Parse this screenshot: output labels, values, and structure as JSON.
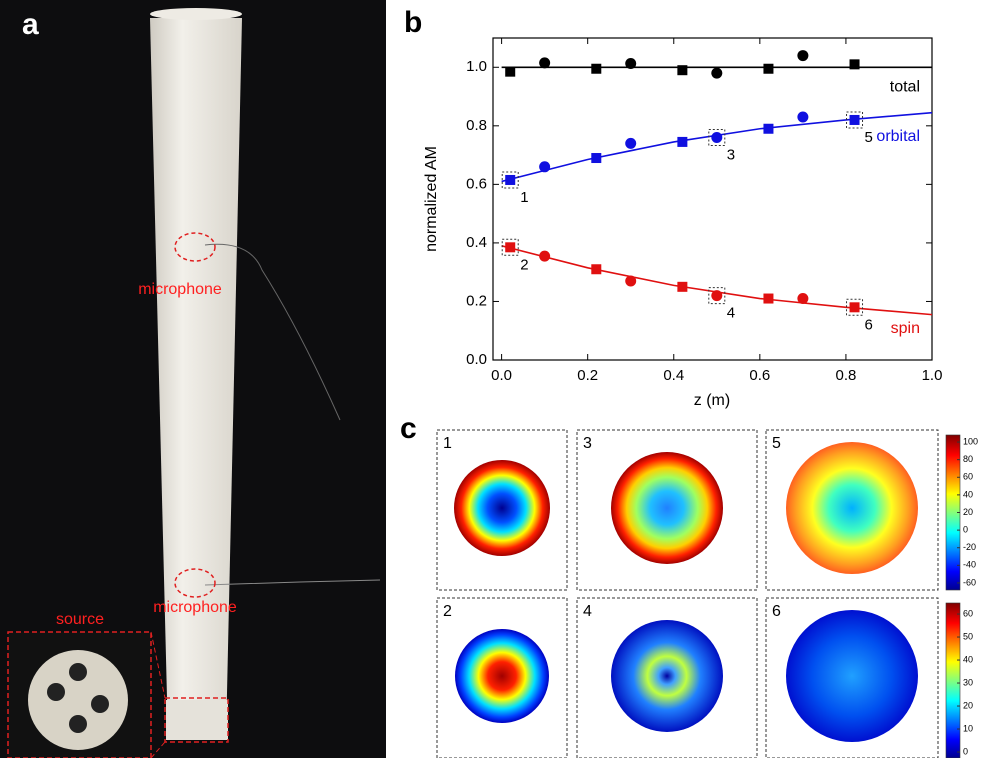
{
  "panel_labels": [
    "a",
    "b",
    "c"
  ],
  "photo": {
    "labels": [
      "microphone",
      "microphone",
      "source"
    ]
  },
  "chart_data": {
    "type": "scatter",
    "x_label": "z (m)",
    "y_label": "normalized AM",
    "xlim": [
      -0.02,
      1.0
    ],
    "xticks": [
      {
        "value": 0,
        "label": "0.0"
      },
      {
        "value": 0.2,
        "label": "0.2"
      },
      {
        "value": 0.4,
        "label": "0.4"
      },
      {
        "value": 0.6,
        "label": "0.6"
      },
      {
        "value": 0.8,
        "label": "0.8"
      },
      {
        "value": 1,
        "label": "1.0"
      }
    ],
    "ylim": [
      0,
      1.1
    ],
    "yticks": [
      {
        "value": 0,
        "label": "0.0"
      },
      {
        "value": 0.2,
        "label": "0.2"
      },
      {
        "value": 0.4,
        "label": "0.4"
      },
      {
        "value": 0.6,
        "label": "0.6"
      },
      {
        "value": 0.8,
        "label": "0.8"
      },
      {
        "value": 1,
        "label": "1.0"
      }
    ],
    "series": [
      {
        "name": "total",
        "color": "#000000",
        "x": [
          0.02,
          0.1,
          0.22,
          0.3,
          0.42,
          0.5,
          0.62,
          0.7,
          0.82
        ],
        "values": [
          0.985,
          1.015,
          0.995,
          1.013,
          0.99,
          0.98,
          0.995,
          1.04,
          1.01
        ],
        "markers": [
          "square",
          "circle",
          "square",
          "circle",
          "square",
          "circle",
          "square",
          "circle",
          "square"
        ],
        "fit": {
          "x": [
            0,
            1
          ],
          "values": [
            1,
            1
          ]
        }
      },
      {
        "name": "orbital",
        "color": "#1010e0",
        "x": [
          0.02,
          0.1,
          0.22,
          0.3,
          0.42,
          0.5,
          0.62,
          0.7,
          0.82
        ],
        "values": [
          0.615,
          0.66,
          0.69,
          0.74,
          0.745,
          0.76,
          0.79,
          0.83,
          0.82
        ],
        "markers": [
          "square",
          "circle",
          "square",
          "circle",
          "square",
          "circle",
          "square",
          "circle",
          "square"
        ],
        "point_labels": [
          "1",
          null,
          null,
          null,
          null,
          "3",
          null,
          null,
          "5"
        ],
        "fit": {
          "x": [
            0,
            0.2,
            0.4,
            0.6,
            0.8,
            1
          ],
          "values": [
            0.61,
            0.685,
            0.745,
            0.79,
            0.82,
            0.845
          ]
        }
      },
      {
        "name": "spin",
        "color": "#e01010",
        "x": [
          0.02,
          0.1,
          0.22,
          0.3,
          0.42,
          0.5,
          0.62,
          0.7,
          0.82
        ],
        "values": [
          0.385,
          0.355,
          0.31,
          0.27,
          0.25,
          0.22,
          0.21,
          0.21,
          0.18
        ],
        "markers": [
          "square",
          "circle",
          "square",
          "circle",
          "square",
          "circle",
          "square",
          "circle",
          "square"
        ],
        "point_labels": [
          "2",
          null,
          null,
          null,
          null,
          "4",
          null,
          null,
          "6"
        ],
        "fit": {
          "x": [
            0,
            0.2,
            0.4,
            0.6,
            0.8,
            1
          ],
          "values": [
            0.39,
            0.315,
            0.255,
            0.21,
            0.18,
            0.155
          ]
        }
      }
    ]
  },
  "maps": {
    "labels": [
      "1",
      "2",
      "3",
      "4",
      "5",
      "6"
    ],
    "colorbars": [
      {
        "lim": [
          -68,
          108
        ],
        "ticks": [
          100,
          80,
          60,
          40,
          20,
          0,
          -20,
          -40,
          -60
        ]
      },
      {
        "lim": [
          -2.6,
          64.8
        ],
        "ticks": [
          60,
          50,
          40,
          30,
          20,
          10,
          0
        ]
      }
    ]
  }
}
